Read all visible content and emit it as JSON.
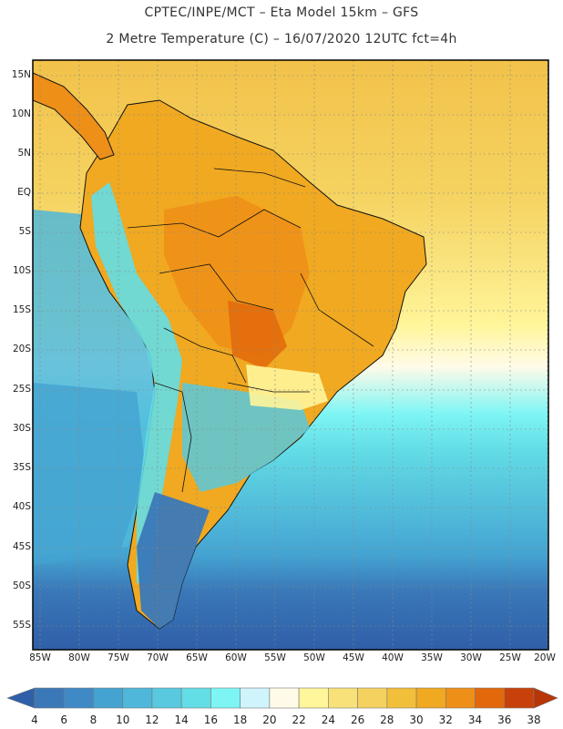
{
  "header": {
    "title_line1": "CPTEC/INPE/MCT –  Eta Model 15km – GFS",
    "title_line2": "2 Metre Temperature (C) – 16/07/2020 12UTC fct=4h"
  },
  "map": {
    "region": "South America",
    "lat_labels": [
      "15N",
      "10N",
      "5N",
      "EQ",
      "5S",
      "10S",
      "15S",
      "20S",
      "25S",
      "30S",
      "35S",
      "40S",
      "45S",
      "50S",
      "55S"
    ],
    "lon_labels": [
      "85W",
      "80W",
      "75W",
      "70W",
      "65W",
      "60W",
      "55W",
      "50W",
      "45W",
      "40W",
      "35W",
      "30W",
      "25W",
      "20W"
    ]
  },
  "colorbar": {
    "labels": [
      "4",
      "6",
      "8",
      "10",
      "12",
      "14",
      "16",
      "18",
      "20",
      "22",
      "24",
      "26",
      "28",
      "30",
      "32",
      "34",
      "36",
      "38"
    ],
    "colors": [
      "#3a78b8",
      "#3f89c6",
      "#44a3d1",
      "#4fb7d9",
      "#58c9de",
      "#63dde6",
      "#7ef5f5",
      "#cff4fb",
      "#fffbe8",
      "#fff59a",
      "#f9e17a",
      "#f5d25f",
      "#f2bf3a",
      "#f0a920",
      "#ee8f18",
      "#e2680b",
      "#c8410a"
    ],
    "left_arrow_color": "#2f5fa8",
    "right_arrow_color": "#b83508"
  }
}
